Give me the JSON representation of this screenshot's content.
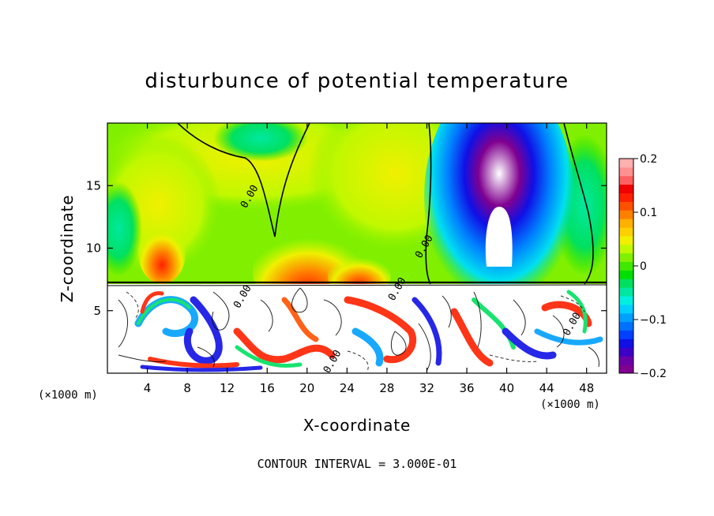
{
  "chart_data": {
    "type": "heatmap",
    "title": "disturbunce of potential temperature",
    "xlabel": "X-coordinate",
    "ylabel": "Z-coordinate",
    "x_unit": "(×1000 m)",
    "z_unit": "(×1000 m)",
    "xlim": [
      0,
      50
    ],
    "ylim": [
      0,
      20
    ],
    "x_ticks": [
      4,
      8,
      12,
      16,
      20,
      24,
      28,
      32,
      36,
      40,
      44,
      48
    ],
    "y_ticks": [
      5,
      10,
      15
    ],
    "colorbar": {
      "range": [
        -0.2,
        0.2
      ],
      "tick_values": [
        0.2,
        0.1,
        0,
        -0.1,
        -0.2
      ],
      "tick_labels": [
        "0.2",
        "0.1",
        "0",
        "−0.1",
        "−0.2"
      ],
      "colors": [
        "#800090",
        "#6a00a8",
        "#3c00c8",
        "#1010e6",
        "#0040ff",
        "#0070ff",
        "#00a0ff",
        "#00d0ff",
        "#00f0e0",
        "#00e8a0",
        "#00e060",
        "#00e000",
        "#40e800",
        "#80f000",
        "#c0f800",
        "#f0f000",
        "#ffd000",
        "#ffb000",
        "#ff8000",
        "#ff5000",
        "#ff2000",
        "#f00000",
        "#ff6060",
        "#ff9090",
        "#ffb0b0"
      ]
    },
    "contour_labels": [
      {
        "text": "0.00",
        "x": 14.5,
        "z": 14.0
      },
      {
        "text": "0.00",
        "x": 32.0,
        "z": 10.0
      },
      {
        "text": "0.00",
        "x": 13.8,
        "z": 6.0
      },
      {
        "text": "0.00",
        "x": 29.3,
        "z": 6.6
      },
      {
        "text": "0.00",
        "x": 22.8,
        "z": 0.8
      },
      {
        "text": "0.00",
        "x": 46.8,
        "z": 3.8
      }
    ],
    "annotation": "CONTOUR INTERVAL = 3.000E-01"
  }
}
